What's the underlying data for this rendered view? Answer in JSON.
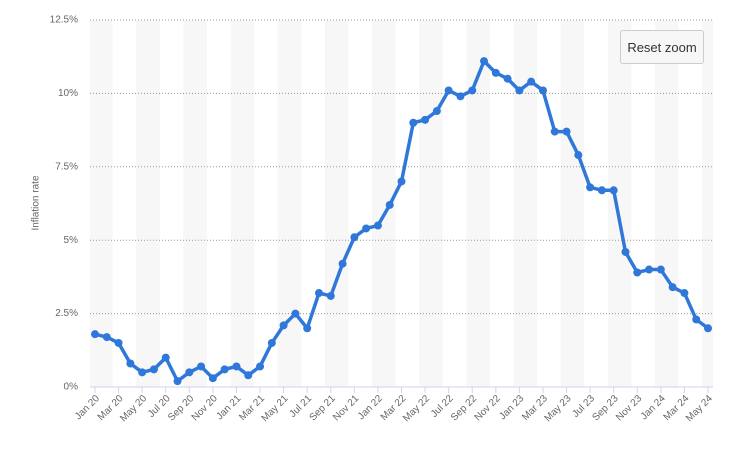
{
  "chart_data": {
    "type": "line",
    "y_label": "Inflation rate",
    "categories": [
      "Jan 20",
      null,
      "Mar 20",
      null,
      "May 20",
      null,
      "Jul 20",
      null,
      "Sep 20",
      null,
      "Nov 20",
      null,
      "Jan 21",
      null,
      "Mar 21",
      null,
      "May 21",
      null,
      "Jul 21",
      null,
      "Sep 21",
      null,
      "Nov 21",
      null,
      "Jan 22",
      null,
      "Mar 22",
      null,
      "May 22",
      null,
      "Jul 22",
      null,
      "Sep 22",
      null,
      "Nov 22",
      null,
      "Jan 23",
      null,
      "Mar 23",
      null,
      "May 23",
      null,
      "Jul 23",
      null,
      "Sep 23",
      null,
      "Nov 23",
      null,
      "Jan 24",
      null,
      "Mar 24",
      null,
      "May 24"
    ],
    "values": [
      1.8,
      1.7,
      1.5,
      0.8,
      0.5,
      0.6,
      1.0,
      0.2,
      0.5,
      0.7,
      0.3,
      0.6,
      0.7,
      0.4,
      0.7,
      1.5,
      2.1,
      2.5,
      2.0,
      3.2,
      3.1,
      4.2,
      5.1,
      5.4,
      5.5,
      6.2,
      7.0,
      9.0,
      9.1,
      9.4,
      10.1,
      9.9,
      10.1,
      11.1,
      10.7,
      10.5,
      10.1,
      10.4,
      10.1,
      8.7,
      8.7,
      7.9,
      6.8,
      6.7,
      6.7,
      4.6,
      3.9,
      4.0,
      4.0,
      3.4,
      3.2,
      2.3,
      2.0
    ],
    "color": "#2f78d9",
    "ylim": [
      0,
      12.5
    ],
    "yticks": [
      {
        "value": 0,
        "label": "0%"
      },
      {
        "value": 2.5,
        "label": "2.5%"
      },
      {
        "value": 5,
        "label": "5%"
      },
      {
        "value": 7.5,
        "label": "7.5%"
      },
      {
        "value": 10,
        "label": "10%"
      },
      {
        "value": 12.5,
        "label": "12.5%"
      }
    ],
    "grid": true
  },
  "reset_button": "Reset zoom"
}
